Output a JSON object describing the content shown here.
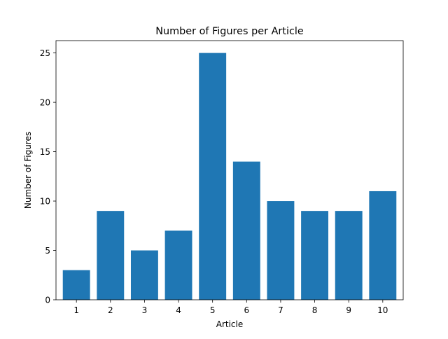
{
  "chart_data": {
    "type": "bar",
    "title": "Number of Figures per Article",
    "xlabel": "Article",
    "ylabel": "Number of Figures",
    "categories": [
      "1",
      "2",
      "3",
      "4",
      "5",
      "6",
      "7",
      "8",
      "9",
      "10"
    ],
    "values": [
      3,
      9,
      5,
      7,
      25,
      14,
      10,
      9,
      9,
      11
    ],
    "ylim": [
      0,
      26.25
    ],
    "yticks": [
      0,
      5,
      10,
      15,
      20,
      25
    ],
    "grid": false,
    "legend": "none",
    "bar_color": "#1f77b4"
  }
}
